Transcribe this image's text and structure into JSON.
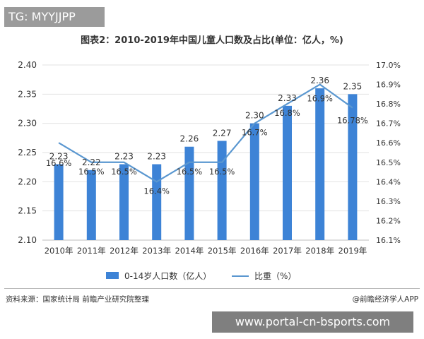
{
  "watermark_tag": "TG: MYYJJPP",
  "bottom_banner": "www.portal-cn-bsports.com",
  "source_note": "资料来源：国家统计局 前瞻产业研究院整理",
  "brand_note": "@前瞻经济学人APP",
  "chart_data": {
    "type": "bar",
    "title": "图表2：2010-2019年中国儿童人口数及占比(单位：亿人，%)",
    "categories": [
      "2010年",
      "2011年",
      "2012年",
      "2013年",
      "2014年",
      "2015年",
      "2016年",
      "2017年",
      "2018年",
      "2019年"
    ],
    "series": [
      {
        "name": "0-14岁人口数（亿人）",
        "type": "bar",
        "axis": "left",
        "values": [
          2.23,
          2.22,
          2.23,
          2.23,
          2.26,
          2.27,
          2.3,
          2.33,
          2.36,
          2.35
        ],
        "labels": [
          "2.23",
          "2.22",
          "2.23",
          "2.23",
          "2.26",
          "2.27",
          "2.30",
          "2.33",
          "2.36",
          "2.35"
        ],
        "color": "#3d83d6"
      },
      {
        "name": "比重（%）",
        "type": "line",
        "axis": "right",
        "values": [
          16.6,
          16.5,
          16.5,
          16.4,
          16.5,
          16.5,
          16.7,
          16.8,
          16.9,
          16.78
        ],
        "labels": [
          "16.6%",
          "16.5%",
          "16.5%",
          "16.4%",
          "16.5%",
          "16.5%",
          "16.7%",
          "16.8%",
          "16.9%",
          "16.78%"
        ],
        "color": "#5a97d0"
      }
    ],
    "y_left": {
      "lim": [
        2.1,
        2.4
      ],
      "ticks": [
        "2.10",
        "2.15",
        "2.20",
        "2.25",
        "2.30",
        "2.35",
        "2.40"
      ]
    },
    "y_right": {
      "lim": [
        16.1,
        17.0
      ],
      "ticks": [
        "16.1%",
        "16.2%",
        "16.3%",
        "16.4%",
        "16.5%",
        "16.6%",
        "16.7%",
        "16.8%",
        "16.9%",
        "17.0%"
      ]
    },
    "grid": true,
    "legend_position": "bottom"
  }
}
